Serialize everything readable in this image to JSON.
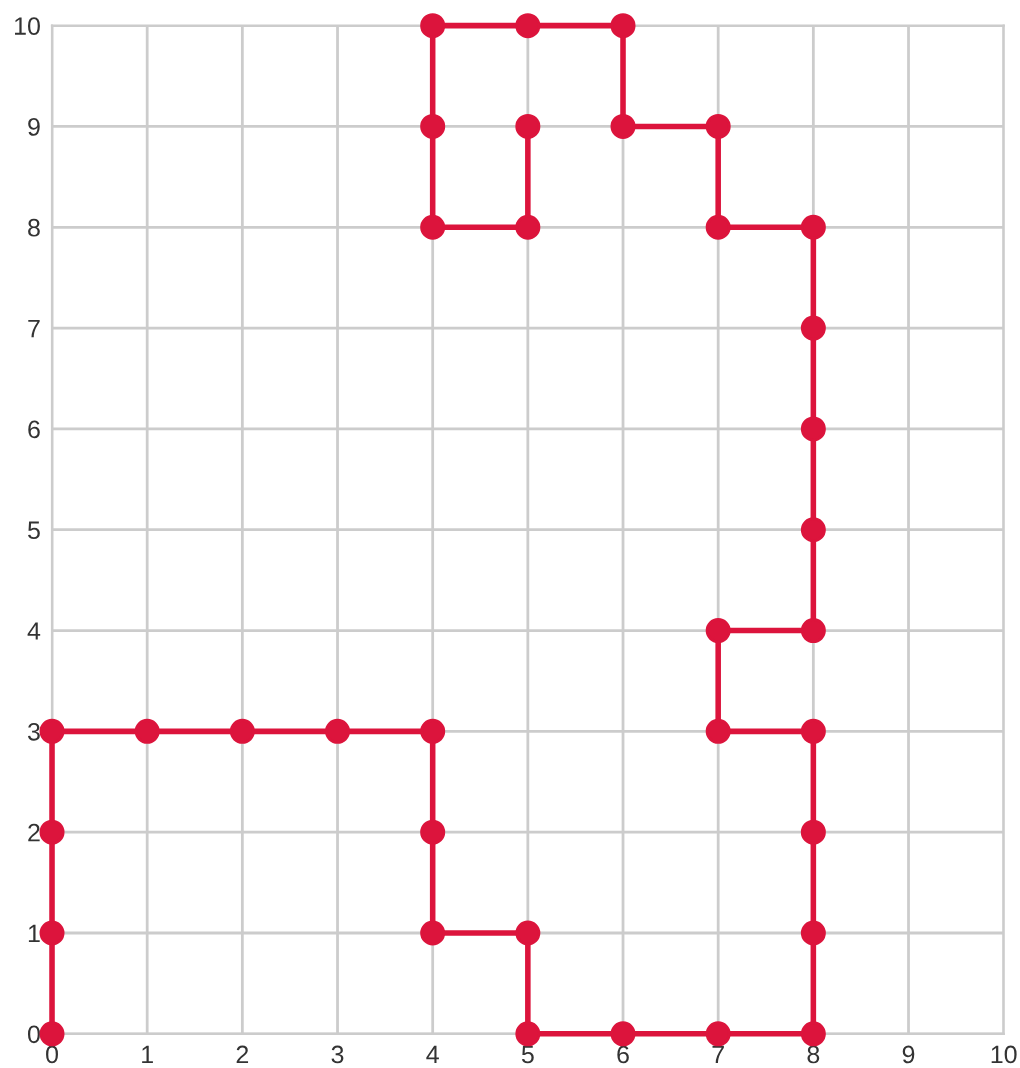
{
  "chart_data": {
    "type": "line",
    "series": [
      {
        "color": "#dc143c",
        "x": [
          0,
          0,
          0,
          0,
          1,
          2,
          3,
          4,
          4,
          4,
          5,
          5,
          6,
          7,
          8,
          8,
          8,
          8,
          7,
          7,
          8,
          8,
          8,
          8,
          8,
          7,
          7,
          6,
          6,
          5,
          4,
          4,
          4,
          5,
          5
        ],
        "values": [
          0,
          1,
          2,
          3,
          3,
          3,
          3,
          3,
          2,
          1,
          1,
          0,
          0,
          0,
          0,
          1,
          2,
          3,
          3,
          4,
          4,
          5,
          6,
          7,
          8,
          8,
          9,
          9,
          10,
          10,
          10,
          9,
          8,
          8,
          9
        ]
      }
    ],
    "xlim": [
      0,
      10
    ],
    "ylim": [
      0,
      10
    ],
    "xticks": [
      0,
      1,
      2,
      3,
      4,
      5,
      6,
      7,
      8,
      9,
      10
    ],
    "yticks": [
      0,
      1,
      2,
      3,
      4,
      5,
      6,
      7,
      8,
      9,
      10
    ],
    "grid": true,
    "marker": "circle",
    "line_style": "solid"
  }
}
